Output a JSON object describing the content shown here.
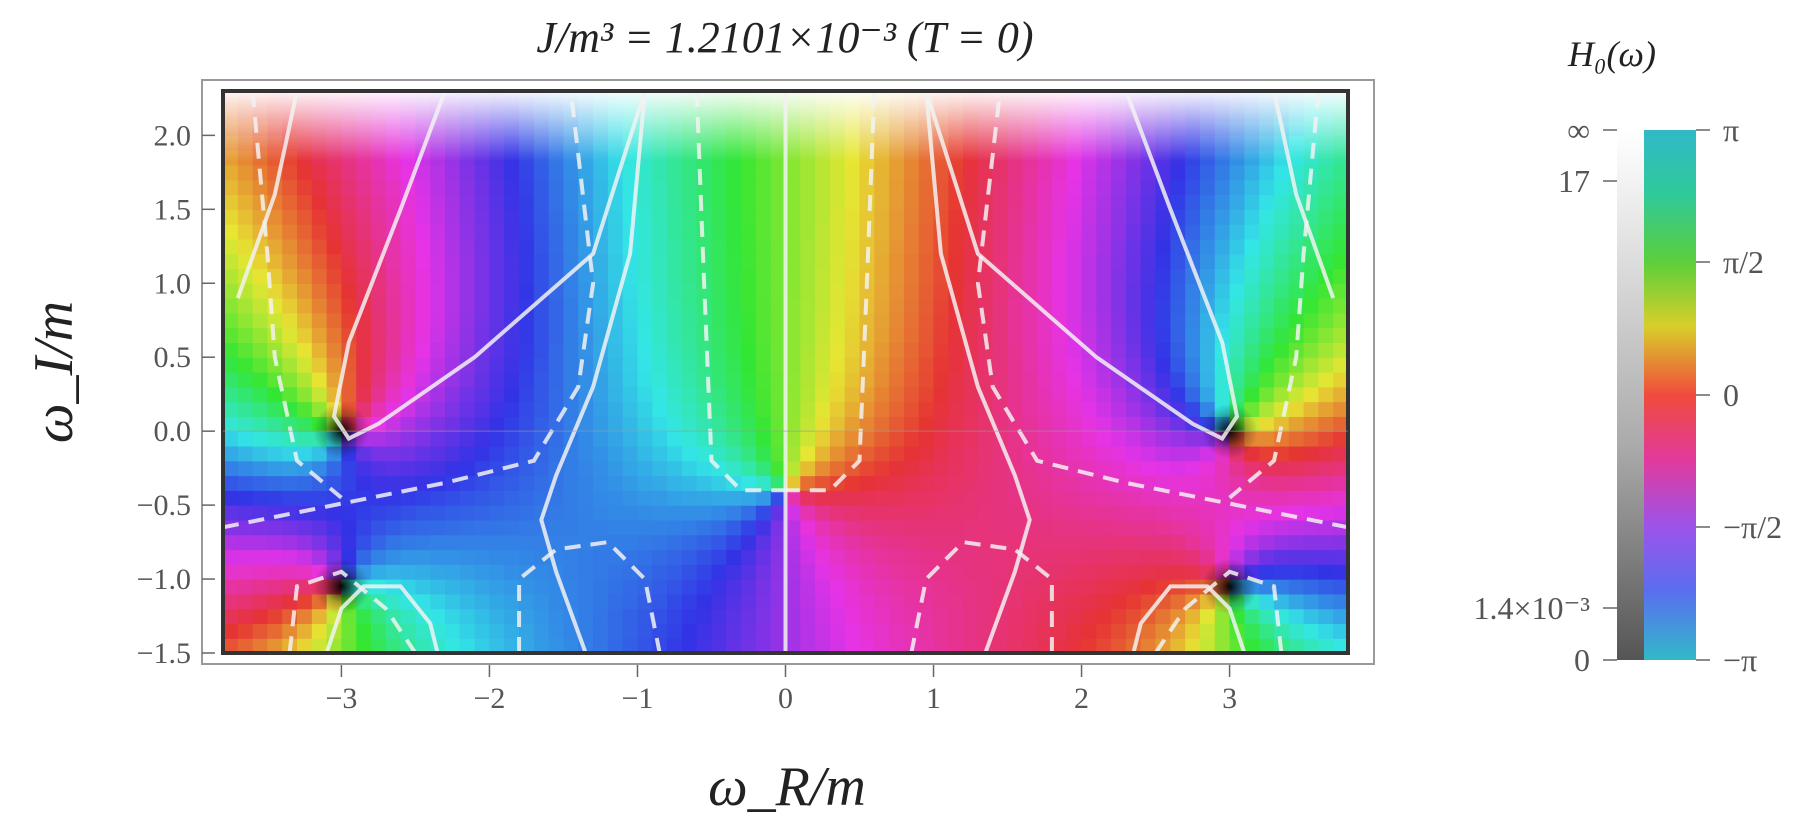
{
  "chart_data": {
    "type": "heatmap",
    "title": "J/m³ = 1.2101×10⁻³   (T = 0)",
    "xlabel": "ω_R/m",
    "ylabel": "ω_I/m",
    "xlim": [
      -3.8,
      3.8
    ],
    "ylim": [
      -1.5,
      2.3
    ],
    "x_ticks": [
      "−3",
      "−2",
      "−1",
      "0",
      "1",
      "2",
      "3"
    ],
    "x_tick_values": [
      -3,
      -2,
      -1,
      0,
      1,
      2,
      3
    ],
    "y_ticks": [
      "−1.5",
      "−1.0",
      "−0.5",
      "0.0",
      "0.5",
      "1.0",
      "1.5",
      "2.0"
    ],
    "y_tick_values": [
      -1.5,
      -1.0,
      -0.5,
      0.0,
      0.5,
      1.0,
      1.5,
      2.0
    ],
    "zeros": [
      [
        -3,
        0
      ],
      [
        3,
        0
      ],
      [
        -3,
        -1.05
      ],
      [
        3,
        -1.05
      ],
      [
        0,
        -0.4
      ]
    ],
    "colorbar": {
      "title": "H₀(ω)",
      "magnitude_ticks": [
        "∞",
        "17",
        "1.4×10⁻³",
        "0"
      ],
      "phase_ticks": [
        "π",
        "π/2",
        "0",
        "−π/2",
        "−π"
      ]
    },
    "contour_styles": [
      "solid",
      "dashed"
    ]
  }
}
